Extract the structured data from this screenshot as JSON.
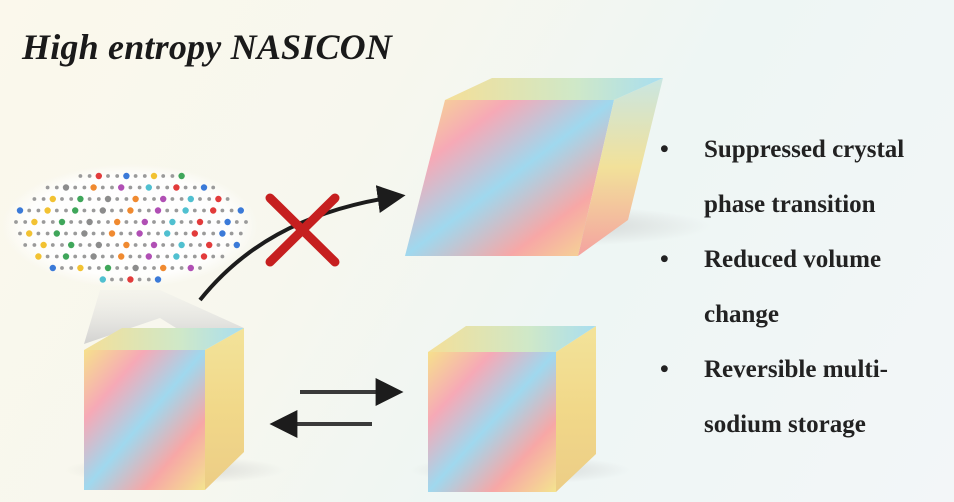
{
  "title": "High entropy NASICON",
  "features": [
    {
      "text": "Suppressed crystal\nphase transition"
    },
    {
      "text": "Reduced volume\nchange"
    },
    {
      "text": "Reversible multi-\nsodium storage"
    }
  ],
  "colors": {
    "cross": "#c61f1f",
    "arrow": "#1c1c1c",
    "cube_top": "#f3e6a8",
    "cube_pink": "#f4a1b2",
    "cube_blue": "#8fd3ec",
    "cube_yellow": "#f2e08a"
  },
  "atom_colors": [
    "#e23b3b",
    "#3b7ad8",
    "#f2c232",
    "#3fa65a",
    "#8c8c8c",
    "#f08a30",
    "#b04fb4",
    "#50c0d0"
  ]
}
